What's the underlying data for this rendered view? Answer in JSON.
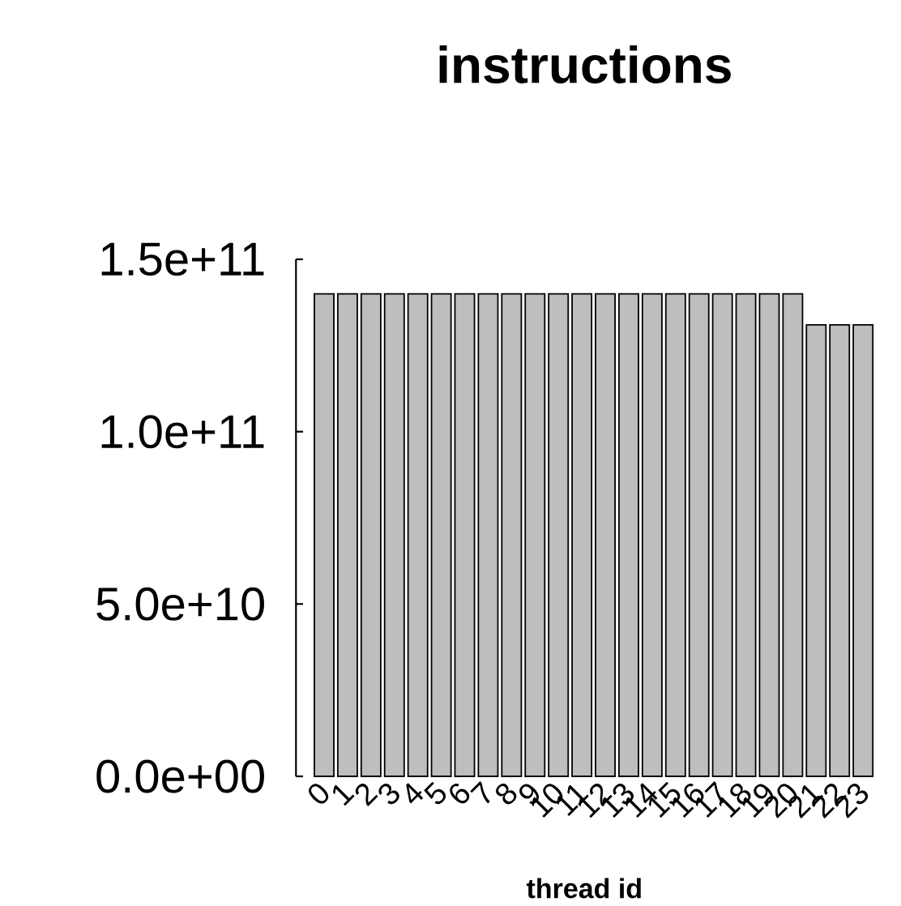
{
  "chart_data": {
    "type": "bar",
    "title": "instructions",
    "xlabel": "thread id",
    "categories": [
      "0",
      "1",
      "2",
      "3",
      "4",
      "5",
      "6",
      "7",
      "8",
      "9",
      "10",
      "11",
      "12",
      "13",
      "14",
      "15",
      "16",
      "17",
      "18",
      "19",
      "20",
      "21",
      "22",
      "23"
    ],
    "values": [
      140000000000.0,
      140000000000.0,
      140000000000.0,
      140000000000.0,
      140000000000.0,
      140000000000.0,
      140000000000.0,
      140000000000.0,
      140000000000.0,
      140000000000.0,
      140000000000.0,
      140000000000.0,
      140000000000.0,
      140000000000.0,
      140000000000.0,
      140000000000.0,
      140000000000.0,
      140000000000.0,
      140000000000.0,
      140000000000.0,
      140000000000.0,
      131000000000.0,
      131000000000.0,
      131000000000.0
    ],
    "color": "#bebebe",
    "ylim": [
      0,
      150000000000.0
    ],
    "yticks": [
      {
        "value": 0,
        "label": "0.0e+00"
      },
      {
        "value": 50000000000.0,
        "label": "5.0e+10"
      },
      {
        "value": 100000000000.0,
        "label": "1.0e+11"
      },
      {
        "value": 150000000000.0,
        "label": "1.5e+11"
      }
    ]
  }
}
